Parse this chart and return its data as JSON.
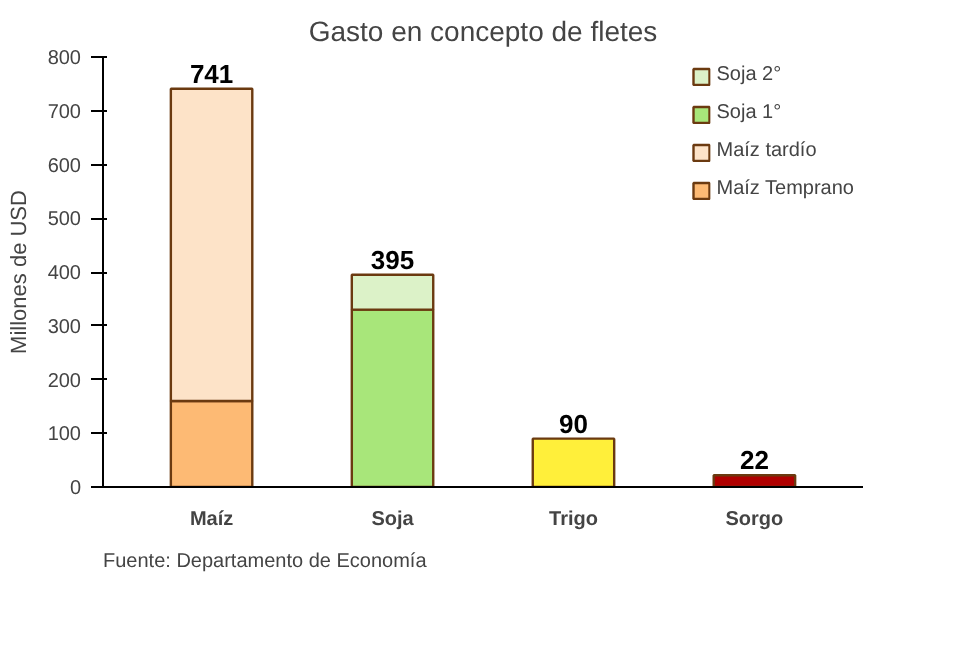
{
  "chart_data": {
    "type": "bar",
    "title": "Gasto en concepto de fletes",
    "ylabel": "Millones de USD",
    "categories": [
      "Maíz",
      "Soja",
      "Trigo",
      "Sorgo"
    ],
    "stacked": true,
    "series": [
      {
        "name": "Maíz Temprano",
        "color": "#fdba74",
        "values": [
          160,
          null,
          null,
          null
        ]
      },
      {
        "name": "Maíz tardío",
        "color": "#fde3c8",
        "values": [
          581,
          null,
          null,
          null
        ]
      },
      {
        "name": "Soja 1°",
        "color": "#a8e67a",
        "values": [
          null,
          330,
          null,
          null
        ]
      },
      {
        "name": "Soja 2°",
        "color": "#dcf2c8",
        "values": [
          null,
          65,
          null,
          null
        ]
      },
      {
        "color": "#ffef3a",
        "values": [
          null,
          null,
          90,
          null
        ]
      },
      {
        "color": "#b00000",
        "values": [
          null,
          null,
          null,
          22
        ]
      }
    ],
    "totals": [
      "741",
      "395",
      "90",
      "22"
    ],
    "ylim": [
      0,
      800
    ],
    "yticks": [
      0,
      100,
      200,
      300,
      400,
      500,
      600,
      700,
      800
    ],
    "grid": false,
    "legend": "right",
    "annotations": [
      "Fuente: Departamento de Economía"
    ]
  }
}
